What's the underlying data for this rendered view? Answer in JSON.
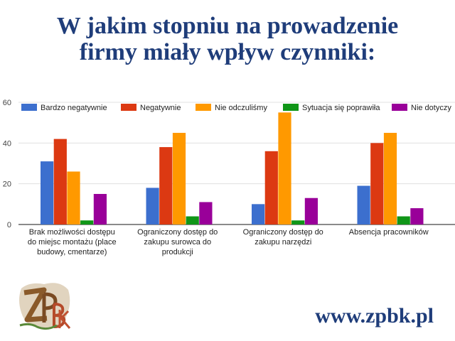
{
  "header": {
    "title_line1": "W jakim stopniu na prowadzenie",
    "title_line2": "firmy miały wpływ czynniki:"
  },
  "chart_data": {
    "type": "bar",
    "title": "W jakim stopniu na prowadzenie firmy miały wpływ czynniki:",
    "xlabel": "",
    "ylabel": "",
    "ylim": [
      0,
      60
    ],
    "yticks": [
      0,
      20,
      40,
      60
    ],
    "grid": true,
    "legend_position": "top",
    "categories": [
      [
        "Brak możliwości dostępu",
        "do miejsc montażu (place",
        "budowy, cmentarze)"
      ],
      [
        "Ograniczony dostęp do",
        "zakupu surowca do",
        "produkcji"
      ],
      [
        "Ograniczony dostęp do",
        "zakupu narzędzi"
      ],
      [
        "Absencja pracowników"
      ]
    ],
    "series": [
      {
        "name": "Bardzo negatywnie",
        "color": "#3c6fce",
        "values": [
          31,
          18,
          10,
          19
        ]
      },
      {
        "name": "Negatywnie",
        "color": "#dc3912",
        "values": [
          42,
          38,
          36,
          40
        ]
      },
      {
        "name": "Nie odczuliśmy",
        "color": "#ff9900",
        "values": [
          26,
          45,
          55,
          45
        ]
      },
      {
        "name": "Sytuacja się poprawiła",
        "color": "#109618",
        "values": [
          2,
          4,
          2,
          4
        ]
      },
      {
        "name": "Nie dotyczy",
        "color": "#990099",
        "values": [
          15,
          11,
          13,
          8
        ]
      }
    ]
  },
  "footer": {
    "url": "www.zpbk.pl",
    "logo_text": "ZPBK"
  }
}
